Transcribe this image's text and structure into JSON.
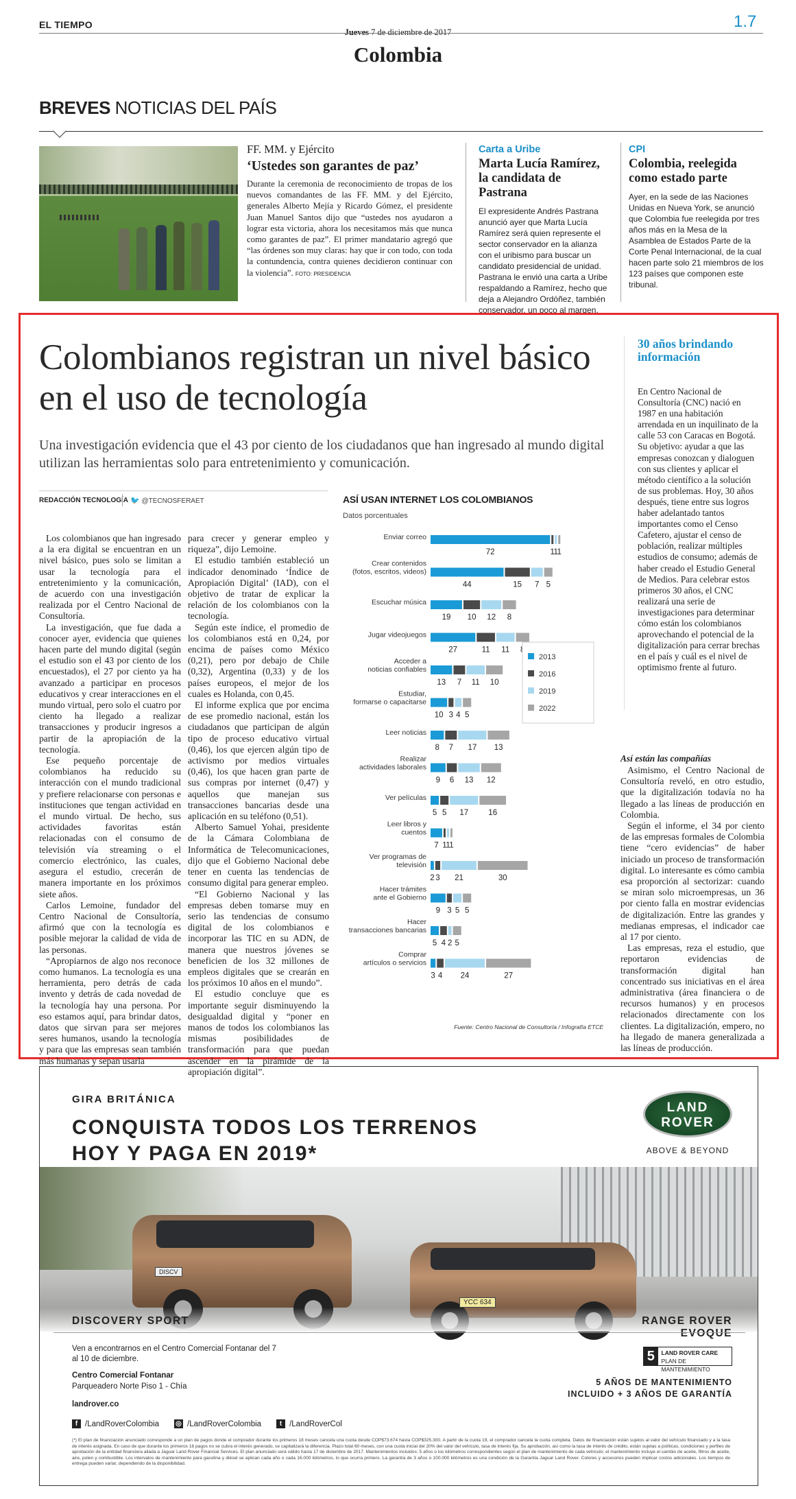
{
  "header": {
    "paper": "EL TIEMPO",
    "date_prefix": "Jueves",
    "date_rest": "7 de diciembre de 2017",
    "section": "Colombia",
    "page": "1.7"
  },
  "breves": {
    "title_bold": "BREVES",
    "title_rest": "NOTICIAS DEL PAÍS",
    "b1": {
      "kicker": "FF. MM. y Ejército",
      "title": "‘Ustedes son garantes de paz’",
      "body": "Durante la ceremonia de reconocimiento de tropas de los nuevos comandantes de las FF. MM. y del Ejército, generales Alberto Mejía y Ricardo Gómez, el presidente Juan Manuel Santos dijo que “ustedes nos ayudaron a lograr esta victoria, ahora los necesitamos más que nunca como garantes de paz”. El primer mandatario agregó que “las órdenes son muy claras: hay que ir con todo, con toda la contundencia, contra quienes decidieron continuar con la violencia”.",
      "credit": "FOTO: PRESIDENCIA"
    },
    "b2": {
      "kicker": "Carta a Uribe",
      "title": "Marta Lucía Ramírez, la candidata de Pastrana",
      "body": "El expresidente Andrés Pastrana anunció ayer que Marta Lucía Ramírez será quien represente el sector conservador en la alianza con el uribismo para buscar un candidato presidencial de unidad. Pastrana le envió una carta a Uribe respaldando a Ramírez, hecho que deja a Alejandro Ordóñez, también conservador, un poco al margen."
    },
    "b3": {
      "kicker": "CPI",
      "title": "Colombia, reelegida como estado parte",
      "body": "Ayer, en la sede de las Naciones Unidas en Nueva York, se anunció que Colombia fue reelegida por tres años más en la Mesa de la Asamblea de Estados Parte de la Corte Penal Internacional, de la cual hacen parte solo 21 miembros de los 123 países que componen este tribunal."
    }
  },
  "article": {
    "headline": "Colombianos registran un nivel básico en el uso de tecnología",
    "deck": "Una investigación evidencia que el 43 por ciento de los ciudadanos que han ingresado al mundo digital utilizan las herramientas solo para entretenimiento y comunicación.",
    "byline": "REDACCIÓN TECNOLOGÍA",
    "twitter": "@TECNOSFERAET",
    "col1": [
      "Los colombianos que han ingresado a la era digital se encuentran en un nivel básico, pues solo se limitan a usar la tecnología para el entretenimiento y la comunicación, de acuerdo con una investigación realizada por el Centro Nacional de Consultoría.",
      "La investigación, que fue dada a conocer ayer, evidencia que quienes hacen parte del mundo digital (según el estudio son el 43 por ciento de los encuestados), el 27 por ciento ya ha avanzado a participar en procesos educativos y crear interacciones en el mundo virtual, pero solo el cuatro por ciento ha llegado a realizar transacciones y producir ingresos a partir de la apropiación de la tecnología.",
      "Ese pequeño porcentaje de colombianos ha reducido su interacción con el mundo tradicional y prefiere relacionarse con personas e instituciones que tengan actividad en el mundo virtual. De hecho, sus actividades favoritas están relacionadas con el consumo de televisión vía streaming o el comercio electrónico, las cuales, asegura el estudio, crecerán de manera importante en los próximos siete años.",
      "Carlos Lemoine, fundador del Centro Nacional de Consultoría, afirmó que con la tecnología es posible mejorar la calidad de vida de las personas.",
      "“Apropiarnos de algo nos reconoce como humanos. La tecnología es una herramienta, pero detrás de cada invento y detrás de cada novedad de la tecnología hay una persona. Por eso estamos aquí, para brindar datos, datos que sirvan para ser mejores seres humanos, usando la tecnología y para que las empresas sean también más humanas y sepan usarla"
    ],
    "col2": [
      "para crecer y generar empleo y riqueza”, dijo Lemoine.",
      "El estudio también estableció un indicador denominado ‘Índice de Apropiación Digital’ (IAD), con el objetivo de tratar de explicar la relación de los colombianos con la tecnología.",
      "Según este índice, el promedio de los colombianos está en 0,24, por encima de países como México (0,21), pero por debajo de Chile (0,32), Argentina (0,33) y de los países europeos, el mejor de los cuales es Holanda, con 0,45.",
      "El informe explica que por encima de ese promedio nacional, están los ciudadanos que participan de algún tipo de proceso educativo virtual (0,46), los que ejercen algún tipo de activismo por medios virtuales (0,46), los que hacen gran parte de sus compras por internet (0,47) y aquellos que manejan sus transacciones bancarias desde una aplicación en su teléfono (0,51).",
      "Alberto Samuel Yohai, presidente de la Cámara Colombiana de Informática de Telecomunicaciones, dijo que el Gobierno Nacional debe tener en cuenta las tendencias de consumo digital para generar empleo.",
      "“El Gobierno Nacional y las empresas deben tomarse muy en serio las tendencias de consumo digital de los colombianos e incorporar las TIC en su ADN, de manera que nuestros jóvenes se beneficien de los 32 millones de empleos digitales que se crearán en los próximos 10 años en el mundo”.",
      "El estudio concluye que es importante seguir disminuyendo la desigualdad digital y “poner en manos de todos los colombianos las mismas posibilidades de transformación para que puedan ascender en la pirámide de la apropiación digital”."
    ]
  },
  "sidebar": {
    "title": "30 años brindando información",
    "body": "En Centro Nacional de Consultoría (CNC) nació en 1987 en una habitación arrendada en un inquilinato de la calle 53 con Caracas en Bogotá. Su objetivo: ayudar a que las empresas conozcan y dialoguen con sus clientes y aplicar el método científico a la solución de sus problemas. Hoy, 30 años después, tiene entre sus logros haber adelantado tantos importantes como el Censo Cafetero, ajustar el censo de población, realizar múltiples estudios de consumo; además de haber creado el Estudio General de Medios. Para celebrar estos primeros 30 años, el CNC realizará una serie de investigaciones para determinar cómo están los colombianos aprovechando el potencial de la digitalización para cerrar brechas en el país y cuál es el nivel de optimismo frente al futuro.",
    "sub": "Así están las compañías",
    "paras": [
      "Asimismo, el Centro Nacional de Consultoría reveló, en otro estudio, que la digitalización todavía no ha llegado a las líneas de producción en Colombia.",
      "Según el informe, el 34 por ciento de las empresas formales de Colombia tiene “cero evidencias” de haber iniciado un proceso de transformación digital. Lo interesante es cómo cambia esa proporción al sectorizar: cuando se miran solo microempresas, un 36 por ciento falla en mostrar evidencias de digitalización. Entre las grandes y medianas empresas, el indicador cae al 17 por ciento.",
      "Las empresas, reza el estudio, que reportaron evidencias de transformación digital han concentrado sus iniciativas en el área administrativa (área financiera o de recursos humanos) y en procesos relacionados directamente con los clientes. La digitalización, empero, no ha llegado de manera generalizada a las líneas de producción."
    ]
  },
  "chart_data": {
    "type": "bar",
    "title": "ASÍ USAN INTERNET LOS COLOMBIANOS",
    "subtitle": "Datos porcentuales",
    "categories": [
      "Enviar correo",
      "Crear contenidos (fotos, escritos, videos)",
      "Escuchar música",
      "Jugar videojuegos",
      "Acceder a noticias confiables",
      "Estudiar, formarse o capacitarse",
      "Leer noticias",
      "Realizar actividades laborales",
      "Ver películas",
      "Leer libros y cuentos",
      "Ver programas de televisión",
      "Hacer trámites ante el Gobierno",
      "Hacer transacciones bancarias",
      "Comprar artículos o servicios"
    ],
    "series": [
      {
        "name": "2013",
        "color": "#1a9ad6",
        "values": [
          72,
          44,
          19,
          27,
          13,
          10,
          8,
          9,
          5,
          7,
          2,
          9,
          5,
          3
        ]
      },
      {
        "name": "2016",
        "color": "#4a4a4a",
        "values": [
          1,
          15,
          10,
          11,
          7,
          3,
          7,
          6,
          5,
          1,
          3,
          3,
          4,
          4
        ]
      },
      {
        "name": "2019",
        "color": "#a7d8f0",
        "values": [
          1,
          7,
          12,
          11,
          11,
          4,
          17,
          13,
          17,
          1,
          21,
          5,
          2,
          24
        ]
      },
      {
        "name": "2022",
        "color": "#a6a6a6",
        "values": [
          1,
          5,
          8,
          8,
          10,
          5,
          13,
          12,
          16,
          1,
          30,
          5,
          5,
          27
        ]
      }
    ],
    "source": "Fuente: Centro Nacional de Consultoría / Infografía ETCE",
    "legend": "right"
  },
  "ad": {
    "kicker": "GIRA BRITÁNICA",
    "headline1": "CONQUISTA TODOS LOS TERRENOS",
    "headline2": "HOY Y PAGA EN 2019*",
    "brand1": "LAND",
    "brand2": "ROVER",
    "tagline": "ABOVE & BEYOND",
    "model1": "DISCOVERY SPORT",
    "model2": "RANGE ROVER EVOQUE",
    "plate1": "DISCV",
    "plate2": "YCC 634",
    "invite": "Ven a encontrarnos en el Centro Comercial Fontanar del 7 al 10 de diciembre.",
    "venue": "Centro Comercial Fontanar",
    "address": "Parqueadero Norte Piso 1 - Chía",
    "web": "landrover.co",
    "care_num": "5",
    "care1": "LAND ROVER CARE",
    "care2": "PLAN DE MANTENIMIENTO",
    "maint1": "5 AÑOS DE MANTENIMIENTO",
    "maint2": "INCLUIDO + 3 AÑOS DE GARANTÍA",
    "fb": "/LandRoverColombia",
    "ig": "/LandRoverColombia",
    "tw": "/LandRoverCol",
    "legal": "(*) El plan de financiación anunciado corresponde a un plan de pagos donde el comprador durante los primeros 18 meses cancela una cuota desde COP$73.674 hasta COP$325.300. A partir de la cuota 19, el comprador cancela la cuota completa. Datos de financiación están sujetos al valor del vehículo financiado y a la tasa de interés asignada. En caso de que durante los primeros 18 pagos no se cubra el interés generado, se capitalizará la diferencia. Plazo total 60 meses, con una cuota inicial del 20% del valor del vehículo, tasa de interés fija. Su aprobación, así como la tasa de interés de crédito, están sujetas a políticas, condiciones y perfiles de aprobación de la entidad financiera aliada a Jaguar Land Rover Financial Services. El plan anunciado será válido hasta 17 de diciembre de 2017. Mantenimientos incluidos: 5 años o los kilómetros correspondientes según el plan de mantenimiento de cada vehículo; el mantenimiento incluye el cambio de aceite, filtros de aceite, aire, polen y combustible. Los intervalos de mantenimiento para gasolina y diésel se aplican cada año o cada 16.000 kilómetros, lo que ocurra primero. La garantía de 3 años o 100.000 kilómetros es una condición de la Garantía Jaguar Land Rover. Colores y accesorios pueden implicar costos adicionales. Los tiempos de entrega pueden variar, dependiendo de la disponibilidad."
  }
}
